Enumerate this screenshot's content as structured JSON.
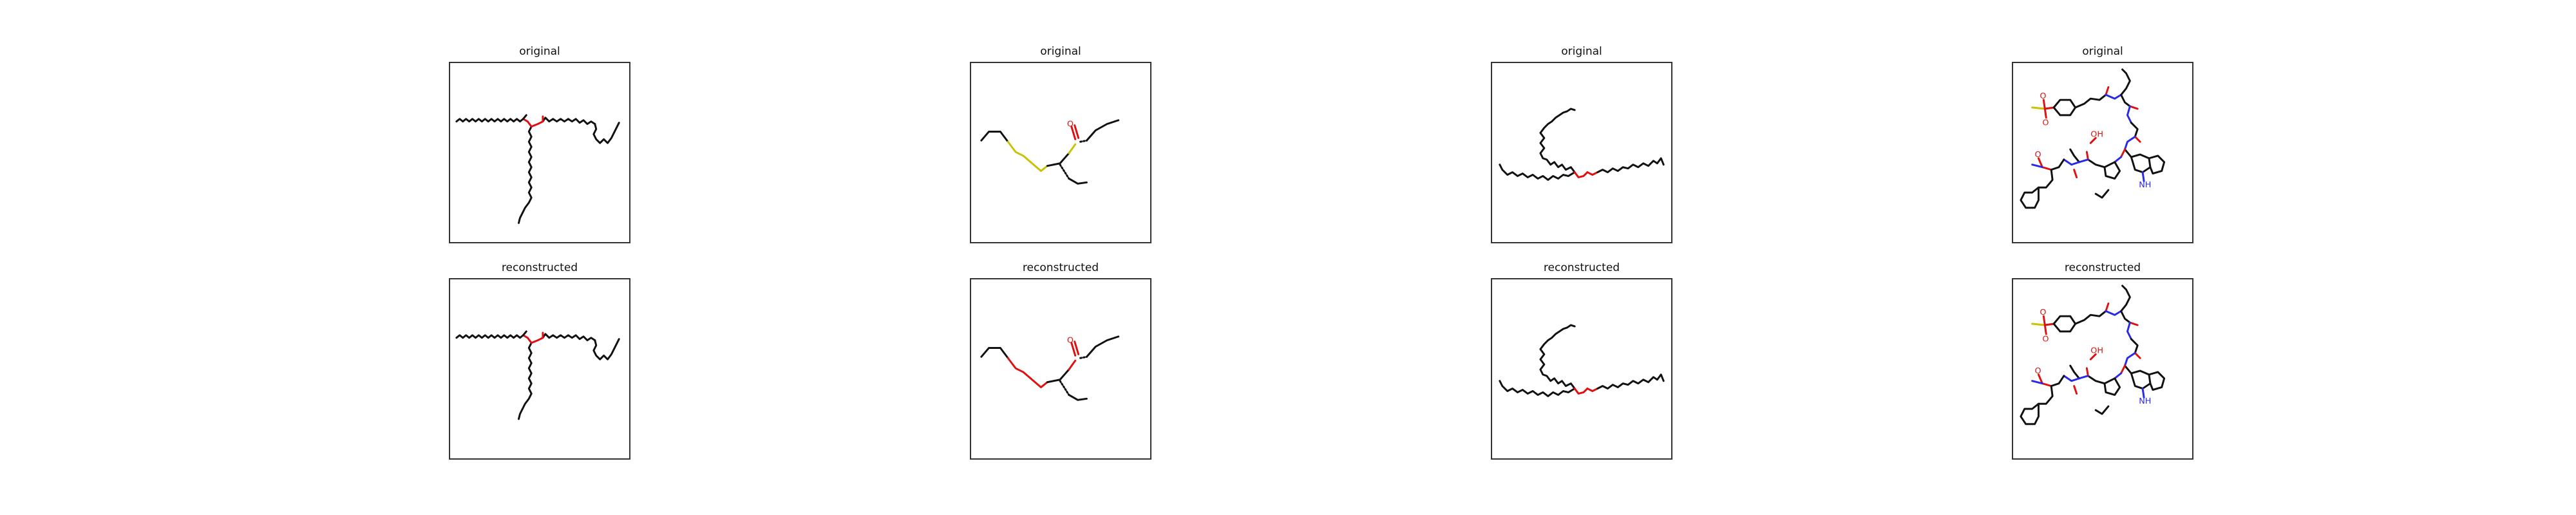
{
  "row_titles": {
    "top": "original",
    "bottom": "reconstructed"
  },
  "atom_labels": {
    "O": "O",
    "S": "S",
    "N": "N",
    "H": "H",
    "NH": "NH",
    "OH": "OH"
  },
  "molecules": [
    {
      "id": "mol-1",
      "bond_colors": [
        "#111111",
        "#e01010"
      ]
    },
    {
      "id": "mol-2",
      "bond_colors": [
        "#111111",
        "#e01010",
        "#c9c200"
      ]
    },
    {
      "id": "mol-3",
      "bond_colors": [
        "#111111",
        "#e01010"
      ]
    },
    {
      "id": "mol-4",
      "bond_colors": [
        "#111111",
        "#e01010",
        "#2a2ae6",
        "#c9c200"
      ]
    }
  ]
}
